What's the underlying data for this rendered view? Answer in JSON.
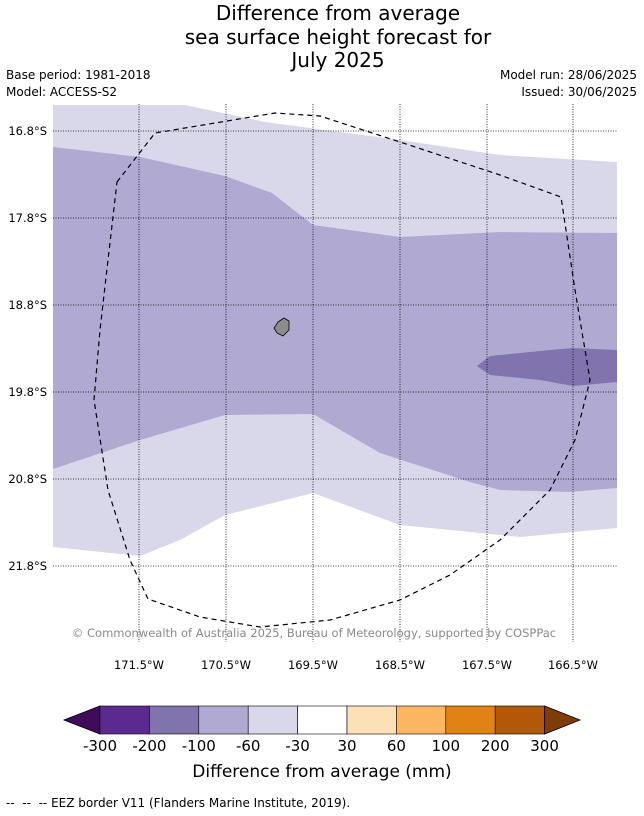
{
  "title": {
    "line1": "Difference from average",
    "line2": "sea surface height forecast for",
    "line3": "July 2025"
  },
  "meta": {
    "base_period": "Base period: 1981-2018",
    "model": "Model: ACCESS-S2",
    "model_run": "Model run: 28/06/2025",
    "issued": "Issued: 30/06/2025"
  },
  "map": {
    "latitude_labels": [
      "16.8°S",
      "17.8°S",
      "18.8°S",
      "19.8°S",
      "20.8°S",
      "21.8°S"
    ],
    "longitude_labels": [
      "171.5°W",
      "170.5°W",
      "169.5°W",
      "168.5°W",
      "167.5°W",
      "166.5°W"
    ],
    "copyright": "© Commonwealth of Australia 2025, Bureau of Meteorology, supported by COSPPac",
    "colors": {
      "band_-30_to_-60": "#d8d8ea",
      "band_-60_to_-100": "#b0aad2",
      "band_-100_to_-200": "#8073ae",
      "land": "#8c8c8c"
    }
  },
  "colorbar": {
    "tick_labels": [
      "-300",
      "-200",
      "-100",
      "-60",
      "-30",
      "30",
      "60",
      "100",
      "200",
      "300"
    ],
    "colors": [
      "#3f0c5c",
      "#5b2a8f",
      "#8073ae",
      "#b0aad2",
      "#d8d8ea",
      "#ffffff",
      "#fde0b6",
      "#fbb661",
      "#e18214",
      "#b35708",
      "#7f3b08"
    ],
    "title": "Difference from average (mm)"
  },
  "footer": {
    "legend_text": "EEZ border V11 (Flanders Marine Institute, 2019)."
  }
}
